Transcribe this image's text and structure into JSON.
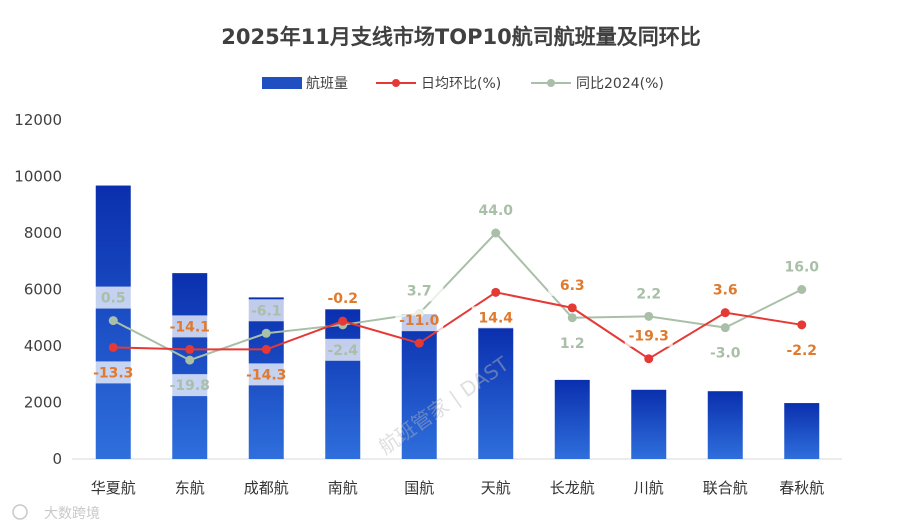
{
  "chart_data": {
    "type": "bar+line",
    "title": "2025年11月支线市场TOP10航司航班量及同环比",
    "categories": [
      "华夏航",
      "东航",
      "成都航",
      "南航",
      "国航",
      "天航",
      "长龙航",
      "川航",
      "联合航",
      "春秋航"
    ],
    "bar_series": {
      "name": "航班量",
      "values": [
        9680,
        6580,
        5720,
        5300,
        5130,
        4650,
        2800,
        2450,
        2400,
        1980
      ],
      "color": "#1f4fc1"
    },
    "line_series": [
      {
        "name": "日均环比(%)",
        "values": [
          -13.3,
          -14.1,
          -14.3,
          -0.2,
          -11.0,
          14.4,
          6.3,
          -19.3,
          3.6,
          -2.2
        ],
        "plot_y": [
          3950,
          3880,
          3880,
          4880,
          4100,
          5900,
          5350,
          3550,
          5180,
          4750
        ],
        "labels": [
          "-13.3",
          "-14.1",
          "-14.3",
          "-0.2",
          "-11.0",
          "14.4",
          "6.3",
          "-19.3",
          "3.6",
          "-2.2"
        ],
        "color": "#e53935"
      },
      {
        "name": "同比2024(%)",
        "values": [
          0.5,
          -19.8,
          -6.1,
          -2.4,
          3.7,
          44.0,
          1.2,
          2.2,
          -3.0,
          16.0
        ],
        "plot_y": [
          4900,
          3500,
          4450,
          4750,
          5150,
          8000,
          5000,
          5050,
          4650,
          6000
        ],
        "labels": [
          "0.5",
          "-19.8",
          "-6.1",
          "-2.4",
          "3.7",
          "44.0",
          "1.2",
          "2.2",
          "-3.0",
          "16.0"
        ],
        "color": "#a9bfa8"
      }
    ],
    "ylim": [
      0,
      12000
    ],
    "yticks": [
      "0",
      "2000",
      "4000",
      "6000",
      "8000",
      "10000",
      "12000"
    ],
    "grid": false,
    "legend_position": "top-center"
  },
  "watermark": "航班管家 | DAST",
  "corner_brand": "大数跨境"
}
